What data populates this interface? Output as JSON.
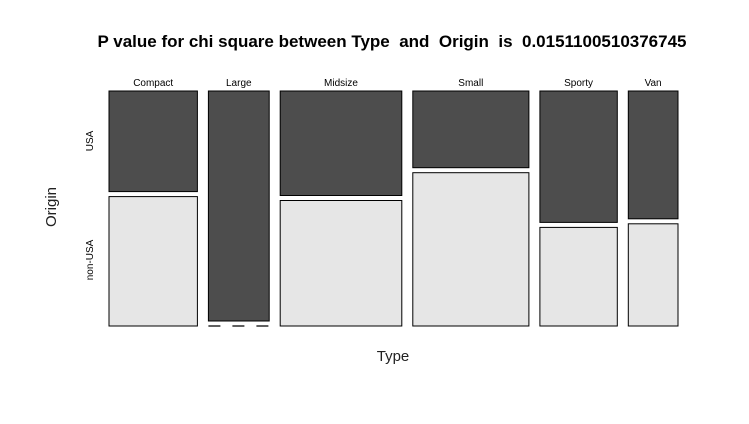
{
  "chart_data": {
    "type": "mosaic",
    "title": "P value for chi square between Type  and  Origin  is  0.0151100510376745",
    "xlabel": "Type",
    "ylabel": "Origin",
    "categories": [
      "Compact",
      "Large",
      "Midsize",
      "Small",
      "Sporty",
      "Van"
    ],
    "rows": [
      "USA",
      "non-USA"
    ],
    "counts": {
      "Compact": {
        "USA": 7,
        "non-USA": 9
      },
      "Large": {
        "USA": 11,
        "non-USA": 0
      },
      "Midsize": {
        "USA": 10,
        "non-USA": 12
      },
      "Small": {
        "USA": 7,
        "non-USA": 14
      },
      "Sporty": {
        "USA": 8,
        "non-USA": 6
      },
      "Van": {
        "USA": 5,
        "non-USA": 4
      }
    },
    "colors": {
      "USA": "#4d4d4d",
      "non-USA": "#e6e6e6",
      "border": "#000000"
    }
  }
}
